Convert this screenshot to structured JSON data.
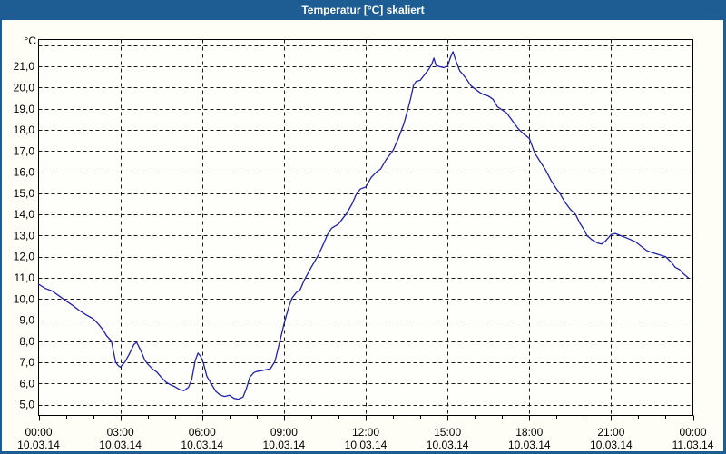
{
  "window": {
    "title": "Temperatur [°C] skaliert"
  },
  "colors": {
    "titlebar": "#1E5C94",
    "border": "#1E5C94",
    "content_bg": "#FEFEF6",
    "plot_bg": "#FEFEFA",
    "grid": "#1A1A1A",
    "frame": "#000000",
    "text": "#000000",
    "line": "#2222AC"
  },
  "chart_data": {
    "type": "line",
    "title": "Temperatur [°C] skaliert",
    "xlabel": "",
    "ylabel": "°C",
    "ylim": [
      5,
      22
    ],
    "x_hours_span": 24,
    "grid": "dashed, horizontal every 1°C (top 22°C line unlabeled), vertical every 3 h",
    "legend_position": "none",
    "y_axis": {
      "unit_label": "°C",
      "tick_step": 1,
      "tick_labels": [
        "5,0",
        "6,0",
        "7,0",
        "8,0",
        "9,0",
        "10,0",
        "11,0",
        "12,0",
        "13,0",
        "14,0",
        "15,0",
        "16,0",
        "17,0",
        "18,0",
        "19,0",
        "20,0",
        "21,0"
      ]
    },
    "x_axis": {
      "major_tick_hours": 3,
      "minor_tick_hours": 1,
      "tick_labels": [
        {
          "time": "00:00",
          "date": "10.03.14"
        },
        {
          "time": "03:00",
          "date": "10.03.14"
        },
        {
          "time": "06:00",
          "date": "10.03.14"
        },
        {
          "time": "09:00",
          "date": "10.03.14"
        },
        {
          "time": "12:00",
          "date": "10.03.14"
        },
        {
          "time": "15:00",
          "date": "10.03.14"
        },
        {
          "time": "18:00",
          "date": "10.03.14"
        },
        {
          "time": "21:00",
          "date": "10.03.14"
        },
        {
          "time": "00:00",
          "date": "11.03.14"
        }
      ]
    },
    "series": [
      {
        "name": "Temperatur",
        "color": "#2222AC",
        "points_format": "[hour_of_day, temperature_C]",
        "points": [
          [
            0,
            10.7
          ],
          [
            0.25,
            10.5
          ],
          [
            0.5,
            10.38
          ],
          [
            0.75,
            10.15
          ],
          [
            1,
            9.92
          ],
          [
            1.25,
            9.7
          ],
          [
            1.5,
            9.45
          ],
          [
            1.75,
            9.25
          ],
          [
            2,
            9.07
          ],
          [
            2.17,
            8.85
          ],
          [
            2.33,
            8.6
          ],
          [
            2.5,
            8.25
          ],
          [
            2.67,
            8.02
          ],
          [
            2.75,
            7.5
          ],
          [
            2.83,
            7.0
          ],
          [
            2.92,
            6.85
          ],
          [
            3,
            6.78
          ],
          [
            3.17,
            7.02
          ],
          [
            3.33,
            7.4
          ],
          [
            3.5,
            7.85
          ],
          [
            3.6,
            7.95
          ],
          [
            3.75,
            7.55
          ],
          [
            3.9,
            7.1
          ],
          [
            4,
            6.93
          ],
          [
            4.17,
            6.7
          ],
          [
            4.33,
            6.55
          ],
          [
            4.5,
            6.3
          ],
          [
            4.67,
            6.07
          ],
          [
            4.83,
            5.95
          ],
          [
            5,
            5.85
          ],
          [
            5.17,
            5.72
          ],
          [
            5.33,
            5.66
          ],
          [
            5.5,
            5.82
          ],
          [
            5.62,
            6.2
          ],
          [
            5.75,
            7.1
          ],
          [
            5.85,
            7.44
          ],
          [
            5.95,
            7.28
          ],
          [
            6.05,
            6.95
          ],
          [
            6.17,
            6.35
          ],
          [
            6.33,
            6.0
          ],
          [
            6.5,
            5.63
          ],
          [
            6.67,
            5.45
          ],
          [
            6.83,
            5.39
          ],
          [
            7,
            5.45
          ],
          [
            7.17,
            5.3
          ],
          [
            7.33,
            5.26
          ],
          [
            7.5,
            5.36
          ],
          [
            7.62,
            5.75
          ],
          [
            7.75,
            6.3
          ],
          [
            7.9,
            6.52
          ],
          [
            8,
            6.57
          ],
          [
            8.25,
            6.63
          ],
          [
            8.5,
            6.7
          ],
          [
            8.67,
            7.05
          ],
          [
            8.83,
            7.9
          ],
          [
            9,
            8.8
          ],
          [
            9.17,
            9.6
          ],
          [
            9.3,
            10.05
          ],
          [
            9.45,
            10.3
          ],
          [
            9.6,
            10.45
          ],
          [
            9.75,
            10.9
          ],
          [
            10,
            11.5
          ],
          [
            10.25,
            12.05
          ],
          [
            10.45,
            12.6
          ],
          [
            10.6,
            13.05
          ],
          [
            10.75,
            13.35
          ],
          [
            11,
            13.55
          ],
          [
            11.15,
            13.8
          ],
          [
            11.3,
            14.05
          ],
          [
            11.5,
            14.5
          ],
          [
            11.65,
            14.95
          ],
          [
            11.8,
            15.2
          ],
          [
            12,
            15.3
          ],
          [
            12.2,
            15.75
          ],
          [
            12.4,
            16.02
          ],
          [
            12.55,
            16.15
          ],
          [
            12.75,
            16.6
          ],
          [
            13,
            17.02
          ],
          [
            13.2,
            17.6
          ],
          [
            13.4,
            18.3
          ],
          [
            13.55,
            19.0
          ],
          [
            13.65,
            19.5
          ],
          [
            13.75,
            20.1
          ],
          [
            13.85,
            20.3
          ],
          [
            14,
            20.35
          ],
          [
            14.15,
            20.6
          ],
          [
            14.3,
            20.85
          ],
          [
            14.42,
            21.1
          ],
          [
            14.5,
            21.4
          ],
          [
            14.58,
            21.05
          ],
          [
            14.7,
            21.0
          ],
          [
            14.85,
            20.95
          ],
          [
            15,
            21.0
          ],
          [
            15.1,
            21.4
          ],
          [
            15.2,
            21.7
          ],
          [
            15.33,
            21.2
          ],
          [
            15.45,
            20.8
          ],
          [
            15.55,
            20.65
          ],
          [
            15.7,
            20.4
          ],
          [
            15.85,
            20.1
          ],
          [
            16,
            19.95
          ],
          [
            16.15,
            19.8
          ],
          [
            16.3,
            19.68
          ],
          [
            16.5,
            19.6
          ],
          [
            16.67,
            19.45
          ],
          [
            16.83,
            19.1
          ],
          [
            17,
            18.95
          ],
          [
            17.17,
            18.8
          ],
          [
            17.4,
            18.4
          ],
          [
            17.6,
            18.05
          ],
          [
            17.8,
            17.8
          ],
          [
            18,
            17.6
          ],
          [
            18.2,
            16.9
          ],
          [
            18.4,
            16.5
          ],
          [
            18.6,
            16.1
          ],
          [
            18.8,
            15.6
          ],
          [
            19,
            15.2
          ],
          [
            19.12,
            15.0
          ],
          [
            19.3,
            14.6
          ],
          [
            19.5,
            14.25
          ],
          [
            19.7,
            14.0
          ],
          [
            19.85,
            13.6
          ],
          [
            20,
            13.3
          ],
          [
            20.12,
            13.0
          ],
          [
            20.3,
            12.8
          ],
          [
            20.5,
            12.65
          ],
          [
            20.65,
            12.6
          ],
          [
            20.8,
            12.75
          ],
          [
            21,
            13.05
          ],
          [
            21.15,
            13.1
          ],
          [
            21.35,
            13.0
          ],
          [
            21.55,
            12.9
          ],
          [
            21.7,
            12.82
          ],
          [
            21.9,
            12.7
          ],
          [
            22.1,
            12.5
          ],
          [
            22.3,
            12.3
          ],
          [
            22.5,
            12.2
          ],
          [
            22.75,
            12.1
          ],
          [
            23,
            12.0
          ],
          [
            23.2,
            11.75
          ],
          [
            23.35,
            11.5
          ],
          [
            23.5,
            11.4
          ],
          [
            23.65,
            11.2
          ],
          [
            23.83,
            11.0
          ]
        ]
      }
    ]
  }
}
